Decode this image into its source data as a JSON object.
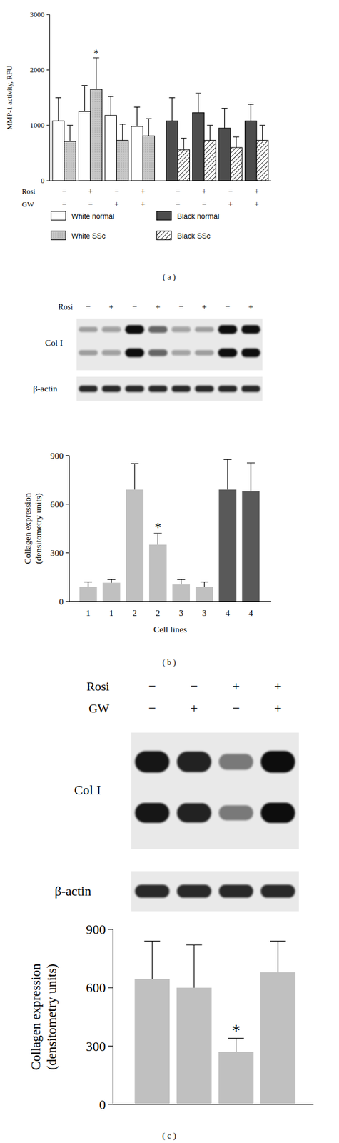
{
  "chart_data": [
    {
      "type": "bar",
      "caption": "( a )",
      "ylabel": "MMP-1 activity, RFU",
      "categories": [
        null,
        null,
        null,
        null,
        null,
        null,
        null,
        null
      ],
      "series": [
        {
          "name": "White normal",
          "color": "#ffffff",
          "values": [
            1080,
            1250,
            1180,
            980,
            null,
            null,
            null,
            null
          ],
          "errors": [
            420,
            470,
            340,
            350,
            null,
            null,
            null,
            null
          ]
        },
        {
          "name": "White SSc",
          "color": "#c8c8c8",
          "values": [
            710,
            1650,
            730,
            810,
            null,
            null,
            null,
            null
          ],
          "errors": [
            290,
            570,
            290,
            310,
            null,
            null,
            null,
            null
          ]
        },
        {
          "name": "Black normal",
          "color": "#4d4d4d",
          "values": [
            null,
            null,
            null,
            null,
            1080,
            1230,
            950,
            1080
          ],
          "errors": [
            null,
            null,
            null,
            null,
            420,
            350,
            360,
            300
          ]
        },
        {
          "name": "Black SSc",
          "color": "#ffffff",
          "values": [
            null,
            null,
            null,
            null,
            560,
            730,
            600,
            730
          ],
          "errors": [
            null,
            null,
            null,
            null,
            210,
            270,
            190,
            270
          ]
        }
      ],
      "x_rows": [
        {
          "name": "Rosi",
          "labels": [
            "−",
            "+",
            "−",
            "+",
            "−",
            "+",
            "−",
            "+"
          ]
        },
        {
          "name": "GW",
          "labels": [
            "−",
            "−",
            "+",
            "+",
            "−",
            "−",
            "+",
            "+"
          ]
        }
      ],
      "annotations": [
        {
          "text": "*",
          "series": 1,
          "index": 1
        }
      ],
      "ylim": [
        0,
        3000
      ],
      "yticks": [
        0,
        1000,
        2000,
        3000
      ],
      "legend": "bottom"
    },
    {
      "type": "bar",
      "caption": "( b )",
      "ylabel": "Collagen expression\n(densitometry units)",
      "xlabel": "Cell lines",
      "categories": [
        "1",
        "1",
        "2",
        "2",
        "3",
        "3",
        "4",
        "4"
      ],
      "values": [
        90,
        115,
        690,
        350,
        105,
        90,
        690,
        680
      ],
      "errors": [
        30,
        20,
        160,
        70,
        30,
        30,
        185,
        175
      ],
      "colors": [
        "#c0c0c0",
        "#c0c0c0",
        "#c0c0c0",
        "#c0c0c0",
        "#c0c0c0",
        "#c0c0c0",
        "#595959",
        "#595959"
      ],
      "annotations": [
        {
          "text": "*",
          "index": 3
        }
      ],
      "ylim": [
        0,
        900
      ],
      "yticks": [
        0,
        300,
        600,
        900
      ],
      "blot": {
        "rows": [
          {
            "name": "Rosi",
            "labels": [
              "−",
              "+",
              "−",
              "+",
              "−",
              "+",
              "−",
              "+"
            ]
          }
        ],
        "band_label": "Col I",
        "control_label": "β-actin"
      }
    },
    {
      "type": "bar",
      "caption": "( c )",
      "ylabel": "Collagen expression\n(densitometry units)",
      "categories": [
        null,
        null,
        null,
        null
      ],
      "values": [
        645,
        600,
        270,
        680
      ],
      "errors": [
        195,
        220,
        70,
        160
      ],
      "color": "#c0c0c0",
      "annotations": [
        {
          "text": "*",
          "index": 2
        }
      ],
      "ylim": [
        0,
        900
      ],
      "yticks": [
        0,
        300,
        600,
        900
      ],
      "blot": {
        "rows": [
          {
            "name": "Rosi",
            "labels": [
              "−",
              "−",
              "+",
              "+"
            ]
          },
          {
            "name": "GW",
            "labels": [
              "−",
              "+",
              "−",
              "+"
            ]
          }
        ],
        "band_label": "Col I",
        "control_label": "β-actin"
      }
    }
  ]
}
